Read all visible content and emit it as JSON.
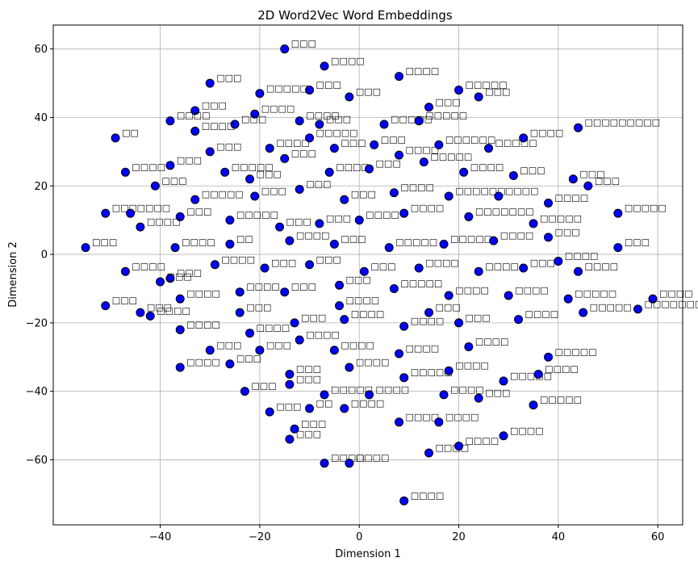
{
  "chart_data": {
    "type": "scatter",
    "title": "2D Word2Vec Word Embeddings",
    "xlabel": "Dimension 1",
    "ylabel": "Dimension 2",
    "xlim": [
      -61.5,
      65
    ],
    "ylim": [
      -79,
      67
    ],
    "xticks": [
      -40,
      -20,
      0,
      20,
      40,
      60
    ],
    "yticks": [
      -60,
      -40,
      -20,
      0,
      20,
      40,
      60
    ],
    "grid": true,
    "marker_color": "#0000ff",
    "marker_edge": "#000000",
    "note": "Point labels are word strings rendered as missing-glyph boxes in the original; shown as placeholder glyphs.",
    "points": [
      {
        "x": -15,
        "y": 60,
        "label": "□□□"
      },
      {
        "x": -7,
        "y": 55,
        "label": "□□□□"
      },
      {
        "x": -30,
        "y": 50,
        "label": "□□□"
      },
      {
        "x": -10,
        "y": 48,
        "label": "□□□"
      },
      {
        "x": -2,
        "y": 46,
        "label": "□□□"
      },
      {
        "x": -20,
        "y": 47,
        "label": "□□□□□"
      },
      {
        "x": 8,
        "y": 52,
        "label": "□□□□"
      },
      {
        "x": 20,
        "y": 48,
        "label": "□□□□□"
      },
      {
        "x": 44,
        "y": 37,
        "label": "□□□□□□□□□"
      },
      {
        "x": -33,
        "y": 42,
        "label": "□□□"
      },
      {
        "x": -38,
        "y": 39,
        "label": "□□□□"
      },
      {
        "x": -21,
        "y": 41,
        "label": "□□□□"
      },
      {
        "x": -12,
        "y": 39,
        "label": "□□□□"
      },
      {
        "x": -25,
        "y": 38,
        "label": "□□□"
      },
      {
        "x": -8,
        "y": 38,
        "label": "□□□"
      },
      {
        "x": 5,
        "y": 38,
        "label": "□□□□□"
      },
      {
        "x": 12,
        "y": 39,
        "label": "□□□□□"
      },
      {
        "x": -49,
        "y": 34,
        "label": "□□"
      },
      {
        "x": -30,
        "y": 30,
        "label": "□□□"
      },
      {
        "x": -18,
        "y": 31,
        "label": "□□□□"
      },
      {
        "x": -10,
        "y": 34,
        "label": "□□□□□"
      },
      {
        "x": -5,
        "y": 31,
        "label": "□□□"
      },
      {
        "x": 3,
        "y": 32,
        "label": "□□□"
      },
      {
        "x": 8,
        "y": 29,
        "label": "□□□□"
      },
      {
        "x": 16,
        "y": 32,
        "label": "□□□□□□"
      },
      {
        "x": 26,
        "y": 31,
        "label": "□□□□□"
      },
      {
        "x": 33,
        "y": 34,
        "label": "□□□□"
      },
      {
        "x": -47,
        "y": 24,
        "label": "□□□□"
      },
      {
        "x": -38,
        "y": 26,
        "label": "□□□"
      },
      {
        "x": -27,
        "y": 24,
        "label": "□□□□□"
      },
      {
        "x": -15,
        "y": 28,
        "label": "□□□"
      },
      {
        "x": -6,
        "y": 24,
        "label": "□□□□"
      },
      {
        "x": 2,
        "y": 25,
        "label": "□□□"
      },
      {
        "x": 13,
        "y": 27,
        "label": "□□□□□"
      },
      {
        "x": 21,
        "y": 24,
        "label": "□□□□"
      },
      {
        "x": 31,
        "y": 23,
        "label": "□□□"
      },
      {
        "x": 43,
        "y": 22,
        "label": "□□□"
      },
      {
        "x": -41,
        "y": 20,
        "label": "□□□"
      },
      {
        "x": -33,
        "y": 16,
        "label": "□□□□□"
      },
      {
        "x": -21,
        "y": 17,
        "label": "□□□"
      },
      {
        "x": -12,
        "y": 19,
        "label": "□□□"
      },
      {
        "x": -3,
        "y": 16,
        "label": "□□□"
      },
      {
        "x": 7,
        "y": 18,
        "label": "□□□□"
      },
      {
        "x": 18,
        "y": 17,
        "label": "□□□□□□"
      },
      {
        "x": 28,
        "y": 17,
        "label": "□□□□"
      },
      {
        "x": 38,
        "y": 15,
        "label": "□□□□"
      },
      {
        "x": -51,
        "y": 12,
        "label": "□□□"
      },
      {
        "x": -46,
        "y": 12,
        "label": "□□□□"
      },
      {
        "x": -36,
        "y": 11,
        "label": "□□□"
      },
      {
        "x": -26,
        "y": 10,
        "label": "□□□□□"
      },
      {
        "x": -16,
        "y": 8,
        "label": "□□□"
      },
      {
        "x": -8,
        "y": 9,
        "label": "□□□"
      },
      {
        "x": 0,
        "y": 10,
        "label": "□□□□"
      },
      {
        "x": 9,
        "y": 12,
        "label": "□□□□"
      },
      {
        "x": 22,
        "y": 11,
        "label": "□□□□□□□"
      },
      {
        "x": 35,
        "y": 9,
        "label": "□□□□□"
      },
      {
        "x": 52,
        "y": 12,
        "label": "□□□□□"
      },
      {
        "x": -55,
        "y": 2,
        "label": "□□□"
      },
      {
        "x": -37,
        "y": 2,
        "label": "□□□□"
      },
      {
        "x": -26,
        "y": 3,
        "label": "□□"
      },
      {
        "x": -14,
        "y": 4,
        "label": "□□□□"
      },
      {
        "x": -5,
        "y": 3,
        "label": "□□□"
      },
      {
        "x": 6,
        "y": 2,
        "label": "□□□□□"
      },
      {
        "x": 17,
        "y": 3,
        "label": "□□□□□"
      },
      {
        "x": 27,
        "y": 4,
        "label": "□□□□"
      },
      {
        "x": 38,
        "y": 5,
        "label": "□□□"
      },
      {
        "x": 52,
        "y": 2,
        "label": "□□□"
      },
      {
        "x": -47,
        "y": -5,
        "label": "□□□□"
      },
      {
        "x": -38,
        "y": -7,
        "label": "□□□"
      },
      {
        "x": -29,
        "y": -3,
        "label": "□□□□"
      },
      {
        "x": -19,
        "y": -4,
        "label": "□□□"
      },
      {
        "x": -10,
        "y": -3,
        "label": "□□□"
      },
      {
        "x": 1,
        "y": -5,
        "label": "□□□"
      },
      {
        "x": 12,
        "y": -4,
        "label": "□□□□"
      },
      {
        "x": 24,
        "y": -5,
        "label": "□□□□"
      },
      {
        "x": 33,
        "y": -4,
        "label": "□□□"
      },
      {
        "x": 44,
        "y": -5,
        "label": "□□□□"
      },
      {
        "x": -51,
        "y": -15,
        "label": "□□□"
      },
      {
        "x": -44,
        "y": -17,
        "label": "□□□"
      },
      {
        "x": -36,
        "y": -13,
        "label": "□□□□"
      },
      {
        "x": -24,
        "y": -11,
        "label": "□□□□"
      },
      {
        "x": -15,
        "y": -11,
        "label": "□□□"
      },
      {
        "x": -4,
        "y": -9,
        "label": "□□□"
      },
      {
        "x": 7,
        "y": -10,
        "label": "□□□□□"
      },
      {
        "x": 18,
        "y": -12,
        "label": "□□□□"
      },
      {
        "x": 30,
        "y": -12,
        "label": "□□□□"
      },
      {
        "x": 42,
        "y": -13,
        "label": "□□□□□"
      },
      {
        "x": 59,
        "y": -13,
        "label": "□□□□"
      },
      {
        "x": -42,
        "y": -18,
        "label": "□□□□"
      },
      {
        "x": -36,
        "y": -22,
        "label": "□□□□"
      },
      {
        "x": -22,
        "y": -23,
        "label": "□□□□"
      },
      {
        "x": -13,
        "y": -20,
        "label": "□□□"
      },
      {
        "x": -3,
        "y": -19,
        "label": "□□□□"
      },
      {
        "x": 9,
        "y": -21,
        "label": "□□□□"
      },
      {
        "x": 20,
        "y": -20,
        "label": "□□□"
      },
      {
        "x": 32,
        "y": -19,
        "label": "□□□□"
      },
      {
        "x": 45,
        "y": -17,
        "label": "□□□□□"
      },
      {
        "x": 56,
        "y": -16,
        "label": "□□□□□□□"
      },
      {
        "x": -30,
        "y": -28,
        "label": "□□□"
      },
      {
        "x": -20,
        "y": -28,
        "label": "□□□"
      },
      {
        "x": -12,
        "y": -25,
        "label": "□□□□"
      },
      {
        "x": -5,
        "y": -28,
        "label": "□□□□"
      },
      {
        "x": 8,
        "y": -29,
        "label": "□□□□"
      },
      {
        "x": 22,
        "y": -27,
        "label": "□□□□"
      },
      {
        "x": 38,
        "y": -30,
        "label": "□□□□□"
      },
      {
        "x": -36,
        "y": -33,
        "label": "□□□□"
      },
      {
        "x": -26,
        "y": -32,
        "label": "□□□"
      },
      {
        "x": -14,
        "y": -35,
        "label": "□□□"
      },
      {
        "x": -2,
        "y": -33,
        "label": "□□□□"
      },
      {
        "x": 9,
        "y": -36,
        "label": "□□□□□"
      },
      {
        "x": 18,
        "y": -34,
        "label": "□□□□"
      },
      {
        "x": 29,
        "y": -37,
        "label": "□□□□□"
      },
      {
        "x": -23,
        "y": -40,
        "label": "□□□"
      },
      {
        "x": -14,
        "y": -38,
        "label": "□□□"
      },
      {
        "x": -7,
        "y": -41,
        "label": "□□□□□"
      },
      {
        "x": 2,
        "y": -41,
        "label": "□□□□"
      },
      {
        "x": 17,
        "y": -41,
        "label": "□□□□"
      },
      {
        "x": 35,
        "y": -44,
        "label": "□□□□□"
      },
      {
        "x": -18,
        "y": -46,
        "label": "□□□"
      },
      {
        "x": -10,
        "y": -45,
        "label": "□□"
      },
      {
        "x": -3,
        "y": -45,
        "label": "□□□□"
      },
      {
        "x": 8,
        "y": -49,
        "label": "□□□□"
      },
      {
        "x": 16,
        "y": -49,
        "label": "□□□□"
      },
      {
        "x": 29,
        "y": -53,
        "label": "□□□□"
      },
      {
        "x": -13,
        "y": -51,
        "label": "□□□"
      },
      {
        "x": 14,
        "y": -58,
        "label": "□□□□"
      },
      {
        "x": -7,
        "y": -61,
        "label": "□□□□"
      },
      {
        "x": -2,
        "y": -61,
        "label": "□□□□"
      },
      {
        "x": 9,
        "y": -72,
        "label": "□□□□"
      },
      {
        "x": -14,
        "y": -54,
        "label": "□□□"
      },
      {
        "x": 20,
        "y": -56,
        "label": "□□□□"
      },
      {
        "x": -24,
        "y": -17,
        "label": "□□□"
      },
      {
        "x": -33,
        "y": 36,
        "label": "□□□□"
      },
      {
        "x": 24,
        "y": 46,
        "label": "□□□"
      },
      {
        "x": 14,
        "y": 43,
        "label": "□□□"
      },
      {
        "x": -44,
        "y": 8,
        "label": "□□□□"
      },
      {
        "x": 46,
        "y": 20,
        "label": "□□□"
      },
      {
        "x": 40,
        "y": -2,
        "label": "□□□□"
      },
      {
        "x": -40,
        "y": -8,
        "label": "□□□"
      },
      {
        "x": 36,
        "y": -35,
        "label": "□□□□"
      },
      {
        "x": -22,
        "y": 22,
        "label": "□□□"
      },
      {
        "x": 24,
        "y": -42,
        "label": "□□□"
      },
      {
        "x": -4,
        "y": -15,
        "label": "□□□□"
      },
      {
        "x": 14,
        "y": -17,
        "label": "□□□"
      }
    ]
  }
}
